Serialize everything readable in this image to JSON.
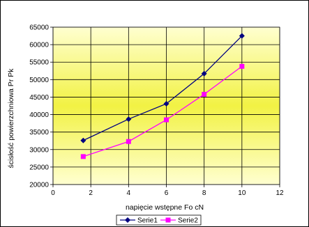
{
  "chart_data": {
    "type": "line",
    "xlabel": "napięcie wstępne Fo cN",
    "ylabel": "ścisłość powierzchniowa Pr Pk",
    "xlim": [
      0,
      12
    ],
    "ylim": [
      20000,
      65000
    ],
    "xticks": [
      "0",
      "2",
      "4",
      "6",
      "8",
      "10",
      "12"
    ],
    "yticks": [
      "20000",
      "25000",
      "30000",
      "35000",
      "40000",
      "45000",
      "50000",
      "55000",
      "60000",
      "65000"
    ],
    "grid": true,
    "legend_position": "bottom",
    "series": [
      {
        "name": "Serie1",
        "color": "#000080",
        "marker": "diamond",
        "x": [
          1.6,
          4,
          6,
          8,
          10
        ],
        "y": [
          32600,
          38700,
          43100,
          51700,
          62500
        ]
      },
      {
        "name": "Serie2",
        "color": "#ff00ff",
        "marker": "square",
        "x": [
          1.6,
          4,
          6,
          8,
          10
        ],
        "y": [
          28000,
          32300,
          38500,
          45800,
          53800
        ]
      }
    ]
  }
}
